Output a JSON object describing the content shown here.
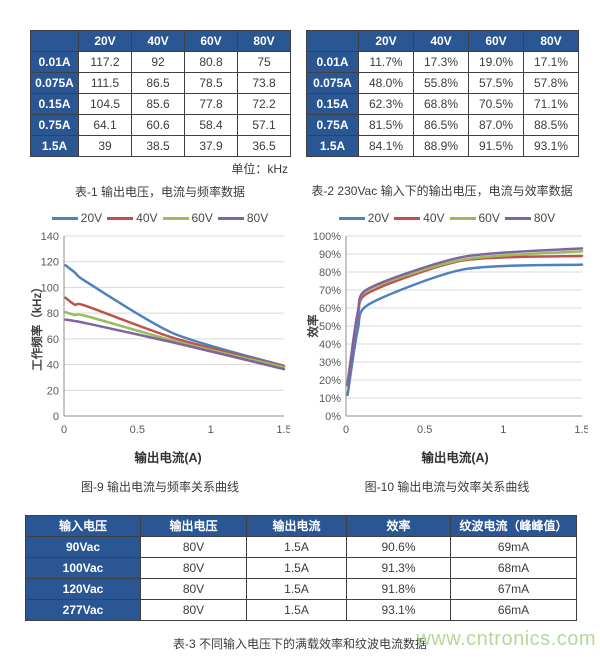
{
  "tables": {
    "table1": {
      "caption": "表-1 输出电压，电流与频率数据",
      "unit_note": "单位：kHz",
      "columns": [
        "",
        "20V",
        "40V",
        "60V",
        "80V"
      ],
      "rows": [
        [
          "0.01A",
          "117.2",
          "92",
          "80.8",
          "75"
        ],
        [
          "0.075A",
          "111.5",
          "86.5",
          "78.5",
          "73.8"
        ],
        [
          "0.15A",
          "104.5",
          "85.6",
          "77.8",
          "72.2"
        ],
        [
          "0.75A",
          "64.1",
          "60.6",
          "58.4",
          "57.1"
        ],
        [
          "1.5A",
          "39",
          "38.5",
          "37.9",
          "36.5"
        ]
      ]
    },
    "table2": {
      "caption": "表-2 230Vac 输入下的输出电压，电流与效率数据",
      "columns": [
        "",
        "20V",
        "40V",
        "60V",
        "80V"
      ],
      "rows": [
        [
          "0.01A",
          "11.7%",
          "17.3%",
          "19.0%",
          "17.1%"
        ],
        [
          "0.075A",
          "48.0%",
          "55.8%",
          "57.5%",
          "57.8%"
        ],
        [
          "0.15A",
          "62.3%",
          "68.8%",
          "70.5%",
          "71.1%"
        ],
        [
          "0.75A",
          "81.5%",
          "86.5%",
          "87.0%",
          "88.5%"
        ],
        [
          "1.5A",
          "84.1%",
          "88.9%",
          "91.5%",
          "93.1%"
        ]
      ]
    },
    "table3": {
      "caption": "表-3 不同输入电压下的满载效率和纹波电流数据",
      "columns": [
        "输入电压",
        "输出电压",
        "输出电流",
        "效率",
        "纹波电流（峰峰值）"
      ],
      "rows": [
        [
          "90Vac",
          "80V",
          "1.5A",
          "90.6%",
          "69mA"
        ],
        [
          "100Vac",
          "80V",
          "1.5A",
          "91.3%",
          "68mA"
        ],
        [
          "120Vac",
          "80V",
          "1.5A",
          "91.8%",
          "67mA"
        ],
        [
          "277Vac",
          "80V",
          "1.5A",
          "93.1%",
          "66mA"
        ]
      ]
    }
  },
  "chart_data": [
    {
      "id": "fig9",
      "type": "line",
      "title": "图-9  输出电流与频率关系曲线",
      "xlabel": "输出电流(A)",
      "ylabel": "工作频率（kHz）",
      "x": [
        0.01,
        0.075,
        0.15,
        0.75,
        1.5
      ],
      "xlim": [
        0,
        1.5
      ],
      "xticks": [
        "0",
        "0.5",
        "1",
        "1.5"
      ],
      "ylim": [
        0,
        140
      ],
      "ystep": 20,
      "y_format": "plain",
      "grid": true,
      "legend_position": "top",
      "series": [
        {
          "name": "20V",
          "color": "#4f81bd",
          "values": [
            117.2,
            111.5,
            104.5,
            64.1,
            39
          ]
        },
        {
          "name": "40V",
          "color": "#c0504d",
          "values": [
            92,
            86.5,
            85.6,
            60.6,
            38.5
          ]
        },
        {
          "name": "60V",
          "color": "#9bbb59",
          "values": [
            80.8,
            78.5,
            77.8,
            58.4,
            37.9
          ]
        },
        {
          "name": "80V",
          "color": "#8064a2",
          "values": [
            75,
            73.8,
            72.2,
            57.1,
            36.5
          ]
        }
      ]
    },
    {
      "id": "fig10",
      "type": "line",
      "title": "图-10 输出电流与效率关系曲线",
      "xlabel": "输出电流(A)",
      "ylabel": "效率",
      "x": [
        0.01,
        0.075,
        0.15,
        0.75,
        1.5
      ],
      "xlim": [
        0,
        1.5
      ],
      "xticks": [
        "0",
        "0.5",
        "1",
        "1.5"
      ],
      "ylim": [
        0,
        100
      ],
      "ystep": 10,
      "y_format": "percent",
      "grid": true,
      "legend_position": "top",
      "series": [
        {
          "name": "20V",
          "color": "#4f81bd",
          "values": [
            11.7,
            48.0,
            62.3,
            81.5,
            84.1
          ]
        },
        {
          "name": "40V",
          "color": "#c0504d",
          "values": [
            17.3,
            55.8,
            68.8,
            86.5,
            88.9
          ]
        },
        {
          "name": "60V",
          "color": "#9bbb59",
          "values": [
            19.0,
            57.5,
            70.5,
            87.0,
            91.5
          ]
        },
        {
          "name": "80V",
          "color": "#8064a2",
          "values": [
            17.1,
            57.8,
            71.1,
            88.5,
            93.1
          ]
        }
      ]
    }
  ],
  "watermark": "www.cntronics.com",
  "colors": {
    "table_header_bg": "#2a5793",
    "table_border": "#404040",
    "grid_line": "#d9d9d9",
    "axis_line": "#8c8c8c",
    "axis_text": "#595959",
    "caption_text": "#3b3b3b",
    "watermark": "#b5d79c"
  }
}
